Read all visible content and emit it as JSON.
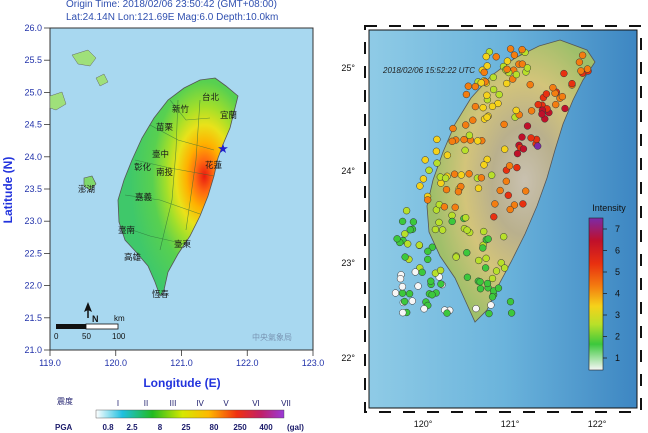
{
  "left_map": {
    "header_line1": "Origin Time: 2018/02/06 23:50:42 (GMT+08:00)",
    "header_line2": "Lat:24.14N Lon:121.69E Mag:6.0 Depth:10.0km",
    "y_axis_label": "Latitude (N)",
    "x_axis_label": "Longitude (E)",
    "lat_ticks": [
      "26.0",
      "25.5",
      "25.0",
      "24.5",
      "24.0",
      "23.5",
      "23.0",
      "22.5",
      "22.0",
      "21.5",
      "21.0"
    ],
    "lon_ticks": [
      "119.0",
      "120.0",
      "121.0",
      "122.0",
      "123.0"
    ],
    "city_labels": [
      "台北",
      "宜蘭",
      "新竹",
      "苗栗",
      "臺中",
      "花蓮",
      "南投",
      "彰化",
      "澎湖",
      "嘉義",
      "臺南",
      "臺東",
      "高雄",
      "恆春"
    ],
    "scale_unit": "km",
    "scale_ticks": [
      "0",
      "50",
      "100"
    ],
    "north_label": "N",
    "watermark": "中央氣象局",
    "epicenter": {
      "lat": 24.14,
      "lon": 121.69
    },
    "legend": {
      "intensity_label": "震度",
      "intensity_levels": [
        "I",
        "II",
        "III",
        "IV",
        "V",
        "VI",
        "VII"
      ],
      "pga_label": "PGA",
      "pga_values": [
        "0.8",
        "2.5",
        "8",
        "25",
        "80",
        "250",
        "400"
      ],
      "pga_unit": "(gal)",
      "colors": [
        "#ffffff",
        "#22aa22",
        "#c8e600",
        "#ffe600",
        "#ff8c00",
        "#ee1111",
        "#a33ad0"
      ]
    }
  },
  "right_map": {
    "timestamp": "2018/02/06 15:52:22 UTC",
    "lat_ticks": [
      "25°",
      "24°",
      "23°",
      "22°"
    ],
    "lon_ticks": [
      "120°",
      "121°",
      "122°"
    ],
    "colorbar_title": "Intensity",
    "colorbar_ticks": [
      "7",
      "6",
      "5",
      "4",
      "3",
      "2",
      "1"
    ],
    "colorbar_colors": [
      "#7b2aa8",
      "#c0102a",
      "#e83010",
      "#f47d10",
      "#f5d21a",
      "#b8e02a",
      "#3cc83c",
      "#f6f6f6"
    ]
  }
}
